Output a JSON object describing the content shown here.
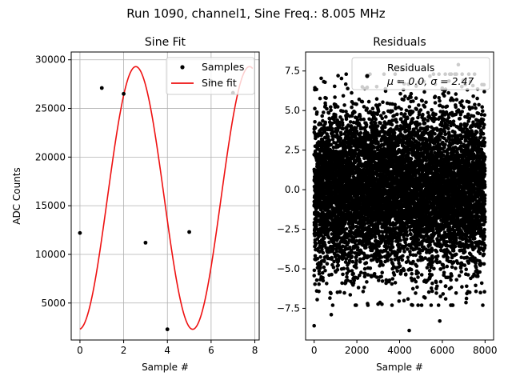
{
  "figure": {
    "suptitle": "Run 1090, channel1, Sine Freq.: 8.005 MHz"
  },
  "chart_data": [
    {
      "type": "line",
      "title": "Sine Fit",
      "xlabel": "Sample #",
      "ylabel": "ADC Counts",
      "xlim": [
        -0.4,
        8.2
      ],
      "ylim": [
        1200,
        30800
      ],
      "xticks": [
        0,
        2,
        4,
        6,
        8
      ],
      "yticks": [
        5000,
        10000,
        15000,
        20000,
        25000,
        30000
      ],
      "grid": true,
      "legend_position": "upper right",
      "series": [
        {
          "name": "Samples",
          "kind": "scatter",
          "color": "#000000",
          "x": [
            0,
            1,
            2,
            3,
            4,
            5,
            6,
            7
          ],
          "y": [
            12200,
            27100,
            26500,
            11200,
            2300,
            12300,
            27800,
            26600
          ]
        },
        {
          "name": "Sine fit",
          "kind": "line",
          "color": "#ee1111",
          "model": {
            "amplitude": 13500,
            "offset": 15800,
            "period": 5.2,
            "phase_deg": 87,
            "x_range": [
              0,
              7.9
            ]
          }
        }
      ]
    },
    {
      "type": "scatter",
      "title": "Residuals",
      "xlabel": "Sample #",
      "ylabel": "",
      "xlim": [
        -400,
        8400
      ],
      "ylim": [
        -9.5,
        8.7
      ],
      "xticks": [
        0,
        2000,
        4000,
        6000,
        8000
      ],
      "yticks": [
        -7.5,
        -5.0,
        -2.5,
        0.0,
        2.5,
        5.0,
        7.5
      ],
      "ytick_labels": [
        "−7.5",
        "−5.0",
        "−2.5",
        "0.0",
        "2.5",
        "5.0",
        "7.5"
      ],
      "grid": false,
      "legend_position": "upper right",
      "legend": {
        "label": "Residuals",
        "stats": "μ = 0.0, σ = 2.47"
      },
      "series": [
        {
          "name": "Residuals",
          "color": "#000000",
          "n_points": 8000,
          "x_range": [
            0,
            7999
          ],
          "mean": 0.0,
          "std": 2.47,
          "outliers": [
            {
              "x": 0,
              "y": -8.6
            },
            {
              "x": 4450,
              "y": -8.9
            },
            {
              "x": 5880,
              "y": -8.3
            },
            {
              "x": 6750,
              "y": 7.9
            },
            {
              "x": 4100,
              "y": 7.6
            },
            {
              "x": 1500,
              "y": 7.3
            },
            {
              "x": 800,
              "y": -7.9
            },
            {
              "x": 2500,
              "y": -7.2
            }
          ]
        }
      ]
    }
  ]
}
